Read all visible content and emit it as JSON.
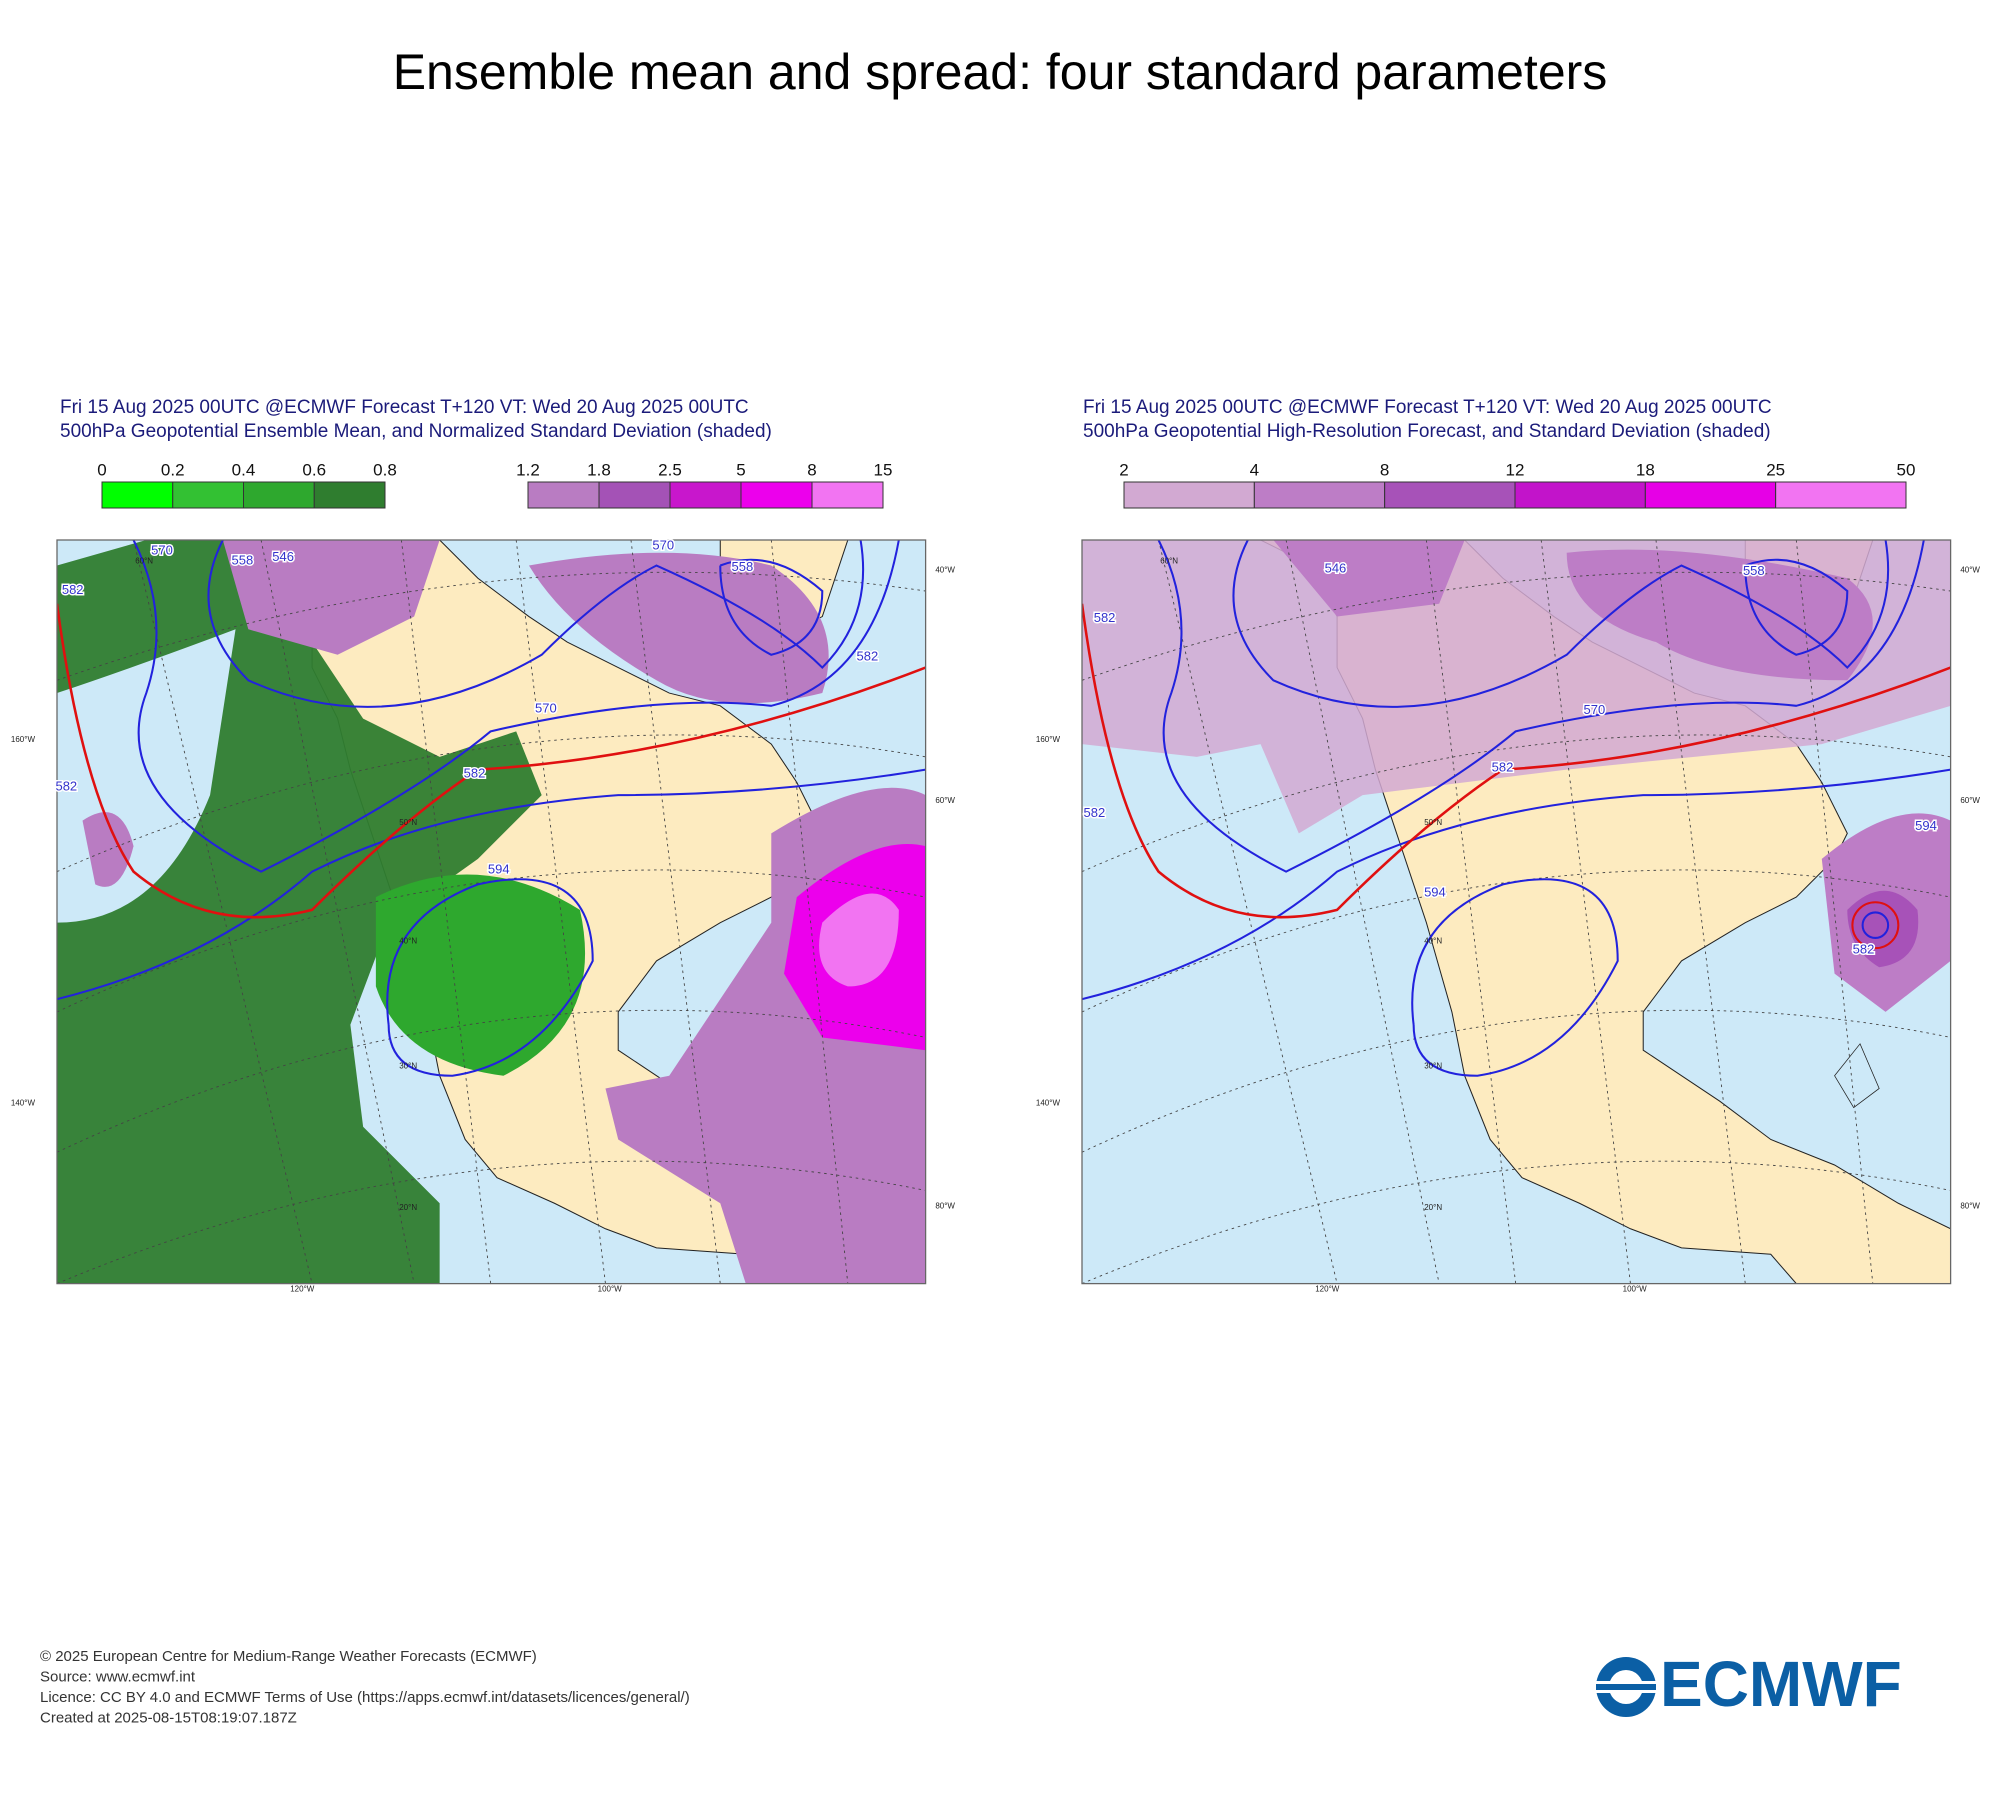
{
  "title": "Ensemble mean and spread: four standard parameters",
  "panels": [
    {
      "header": [
        "Fri 15 Aug 2025 00UTC @ECMWF Forecast T+120 VT: Wed 20 Aug 2025 00UTC",
        "500hPa Geopotential Ensemble Mean, and Normalized Standard Deviation (shaded)"
      ],
      "colorbars": [
        {
          "labels": [
            "0",
            "0.2",
            "0.4",
            "0.6",
            "0.8"
          ],
          "colors": [
            "#00ff00",
            "#33c133",
            "#2ea82e",
            "#2f7d2f"
          ]
        },
        {
          "labels": [
            "1.2",
            "1.8",
            "2.5",
            "5",
            "8",
            "15"
          ],
          "colors": [
            "#b97cc2",
            "#a452b6",
            "#c817cc",
            "#ec00ec",
            "#f274f2"
          ]
        }
      ],
      "contour_labels": [
        "570",
        "558",
        "546",
        "582",
        "570",
        "558",
        "582",
        "570",
        "582",
        "582",
        "594"
      ],
      "grid_labels": [
        "160°W",
        "140°W",
        "120°W",
        "100°W",
        "80°W",
        "60°W",
        "40°W",
        "60°N",
        "50°N",
        "40°N",
        "30°N",
        "20°N"
      ]
    },
    {
      "header": [
        "Fri 15 Aug 2025 00UTC @ECMWF Forecast T+120 VT: Wed 20 Aug 2025 00UTC",
        "500hPa Geopotential High-Resolution Forecast, and Standard Deviation (shaded)"
      ],
      "colorbars": [
        {
          "labels": [
            "2",
            "4",
            "8",
            "12",
            "18",
            "25",
            "50"
          ],
          "colors": [
            "#d2a9d2",
            "#bd7dc6",
            "#a752b8",
            "#c214ca",
            "#e600e6",
            "#f274f2"
          ]
        }
      ],
      "contour_labels": [
        "546",
        "582",
        "570",
        "582",
        "582",
        "594",
        "558",
        "594",
        "582"
      ],
      "grid_labels": [
        "160°W",
        "140°W",
        "120°W",
        "100°W",
        "80°W",
        "60°W",
        "40°W",
        "60°N",
        "50°N",
        "40°N",
        "30°N",
        "20°N"
      ]
    }
  ],
  "footer": [
    "© 2025 European Centre for Medium-Range Weather Forecasts (ECMWF)",
    "Source: www.ecmwf.int",
    "Licence: CC BY 4.0 and ECMWF Terms of Use (https://apps.ecmwf.int/datasets/licences/general/)",
    "Created at 2025-08-15T08:19:07.187Z"
  ],
  "logo": "ECMWF"
}
